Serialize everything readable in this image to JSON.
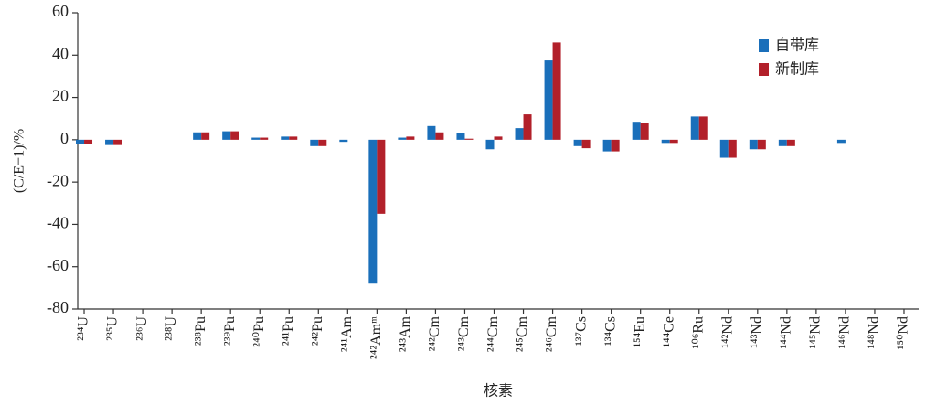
{
  "chart_data": {
    "type": "bar",
    "categories": [
      "²³⁴U",
      "²³⁵U",
      "²³⁶U",
      "²³⁸U",
      "²³⁸Pu",
      "²³⁹Pu",
      "²⁴⁰Pu",
      "²⁴¹Pu",
      "²⁴²Pu",
      "²⁴¹Am",
      "²⁴²Amᵐ",
      "²⁴³Am",
      "²⁴²Cm",
      "²⁴³Cm",
      "²⁴⁴Cm",
      "²⁴⁵Cm",
      "²⁴⁶Cm",
      "¹³⁷Cs",
      "¹³⁴Cs",
      "¹⁵⁴Eu",
      "¹⁴⁴Ce",
      "¹⁰⁶Ru",
      "¹⁴²Nd",
      "¹⁴³Nd",
      "¹⁴⁴Nd",
      "¹⁴⁵Nd",
      "¹⁴⁶Nd",
      "¹⁴⁸Nd",
      "¹⁵⁰Nd"
    ],
    "series": [
      {
        "name": "自带库",
        "color": "#1a6fba",
        "values": [
          -2,
          -2.5,
          null,
          null,
          3.5,
          4,
          1,
          1.5,
          -3,
          -1,
          -68,
          1,
          6.5,
          3,
          -4.5,
          5.5,
          37.5,
          -3,
          -5.5,
          8.5,
          -1.5,
          11,
          -8.5,
          -4.5,
          -3,
          null,
          -1.5,
          null,
          null
        ]
      },
      {
        "name": "新制库",
        "color": "#b2202a",
        "values": [
          -2,
          -2.5,
          null,
          null,
          3.5,
          4,
          1,
          1.5,
          -3,
          null,
          -35,
          1.5,
          3.5,
          0.5,
          1.5,
          12,
          46,
          -4,
          -5.5,
          8,
          -1.5,
          11,
          -8.5,
          -4.5,
          -3,
          null,
          null,
          null,
          null
        ]
      }
    ],
    "ylabel": "(C/E−1)/%",
    "xlabel": "核素",
    "ylim": [
      -80,
      60
    ],
    "yticks": [
      -80,
      -60,
      -40,
      -20,
      0,
      20,
      40,
      60
    ],
    "legend": "upper right"
  }
}
